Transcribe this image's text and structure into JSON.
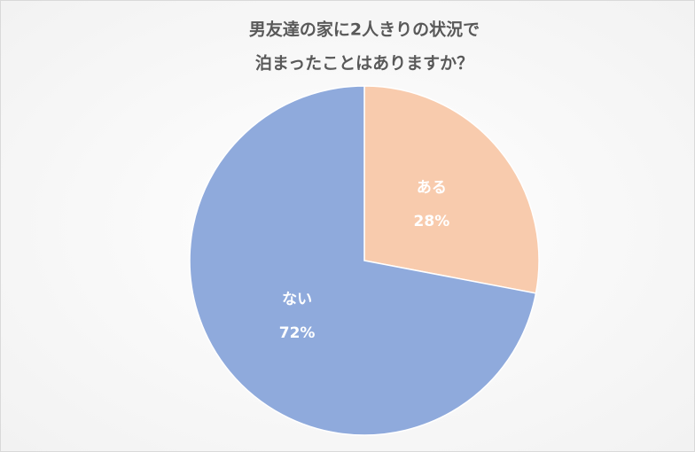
{
  "chart_data": {
    "type": "pie",
    "title": [
      "男友達の家に2人きりの状況で",
      "泊まったことはありますか？"
    ],
    "categories": [
      "ある",
      "ない"
    ],
    "values": [
      28,
      72
    ],
    "value_labels": [
      "28%",
      "72%"
    ],
    "colors": [
      "#f8cbad",
      "#8faadc"
    ]
  }
}
